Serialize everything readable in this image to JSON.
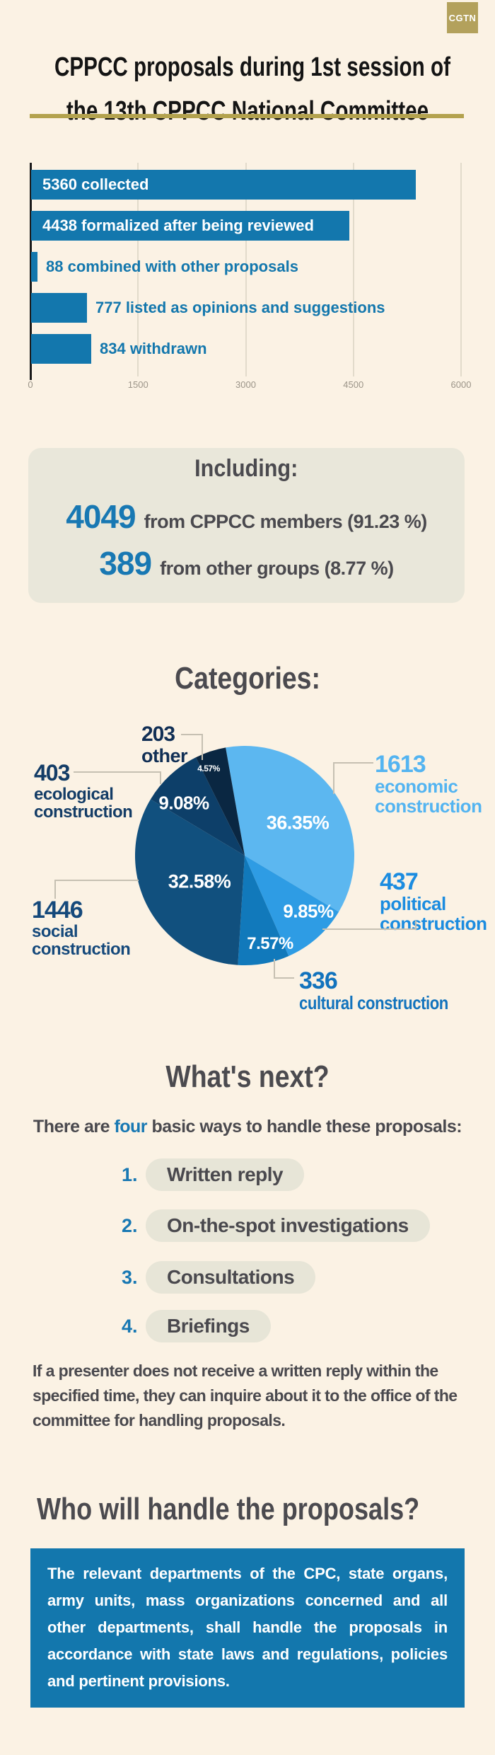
{
  "brand": {
    "logo_text": "CGTN"
  },
  "header": {
    "title_line1": "CPPCC proposals during 1st session of",
    "title_line2": "the 13th CPPCC National Committee"
  },
  "colors": {
    "background": "#fbf2e4",
    "gold": "#b3a15c",
    "underline_gold": "#b3a24e",
    "primary_blue": "#1377ad",
    "accent_blue_text": "#1878b3",
    "dark_gray_text": "#4a494e",
    "box_beige": "#e9e7da"
  },
  "chart_data": [
    {
      "type": "bar",
      "orientation": "horizontal",
      "categories": [
        "collected",
        "formalized after being reviewed",
        "combined with other proposals",
        "listed as opinions and suggestions",
        "withdrawn"
      ],
      "values": [
        5360,
        4438,
        88,
        777,
        834
      ],
      "xlim": [
        0,
        6000
      ],
      "x_ticks": [
        0,
        1500,
        3000,
        4500,
        6000
      ],
      "bar_color": "#1377ad",
      "grid": true,
      "legend": false
    },
    {
      "type": "pie",
      "title": "Categories:",
      "start_angle_deg_from_top": -10,
      "direction": "clockwise",
      "slices": [
        {
          "label": "economic construction",
          "value": 1613,
          "pct": 36.35,
          "color": "#5cb7f0",
          "label_color": "#53b4f1"
        },
        {
          "label": "political construction",
          "value": 437,
          "pct": 9.85,
          "color": "#2e9ce4",
          "label_color": "#1b8ce0"
        },
        {
          "label": "cultural construction",
          "value": 336,
          "pct": 7.57,
          "color": "#1179bb",
          "label_color": "#1273bd"
        },
        {
          "label": "social construction",
          "value": 1446,
          "pct": 32.58,
          "color": "#11507e",
          "label_color": "#15497b"
        },
        {
          "label": "ecological construction",
          "value": 403,
          "pct": 9.08,
          "color": "#0d3f69",
          "label_color": "#133c66"
        },
        {
          "label": "other",
          "value": 203,
          "pct": 4.57,
          "color": "#0a2742",
          "label_color": "#112f55"
        }
      ]
    }
  ],
  "including": {
    "heading": "Including:",
    "rows": [
      {
        "value": "4049",
        "text": "from CPPCC members (91.23 %)"
      },
      {
        "value": "389",
        "text": "from other groups (8.77 %)"
      }
    ]
  },
  "categories": {
    "heading": "Categories:"
  },
  "whats_next": {
    "heading": "What's next?",
    "intro_prefix": "There are ",
    "intro_highlight": "four",
    "intro_suffix": " basic ways to handle these proposals:",
    "steps": [
      {
        "num": "1.",
        "label": "Written reply"
      },
      {
        "num": "2.",
        "label": "On-the-spot investigations"
      },
      {
        "num": "3.",
        "label": "Consultations"
      },
      {
        "num": "4.",
        "label": "Briefings"
      }
    ],
    "note": "If a presenter does not receive a written reply within the specified time, they can inquire about it to the office of the committee for handling proposals."
  },
  "who_handles": {
    "heading": "Who will handle the proposals?",
    "body": "The relevant departments of the CPC, state organs, army units, mass organizations concerned and all other departments, shall handle the proposals in accordance with state laws and regulations, policies and pertinent provisions."
  }
}
